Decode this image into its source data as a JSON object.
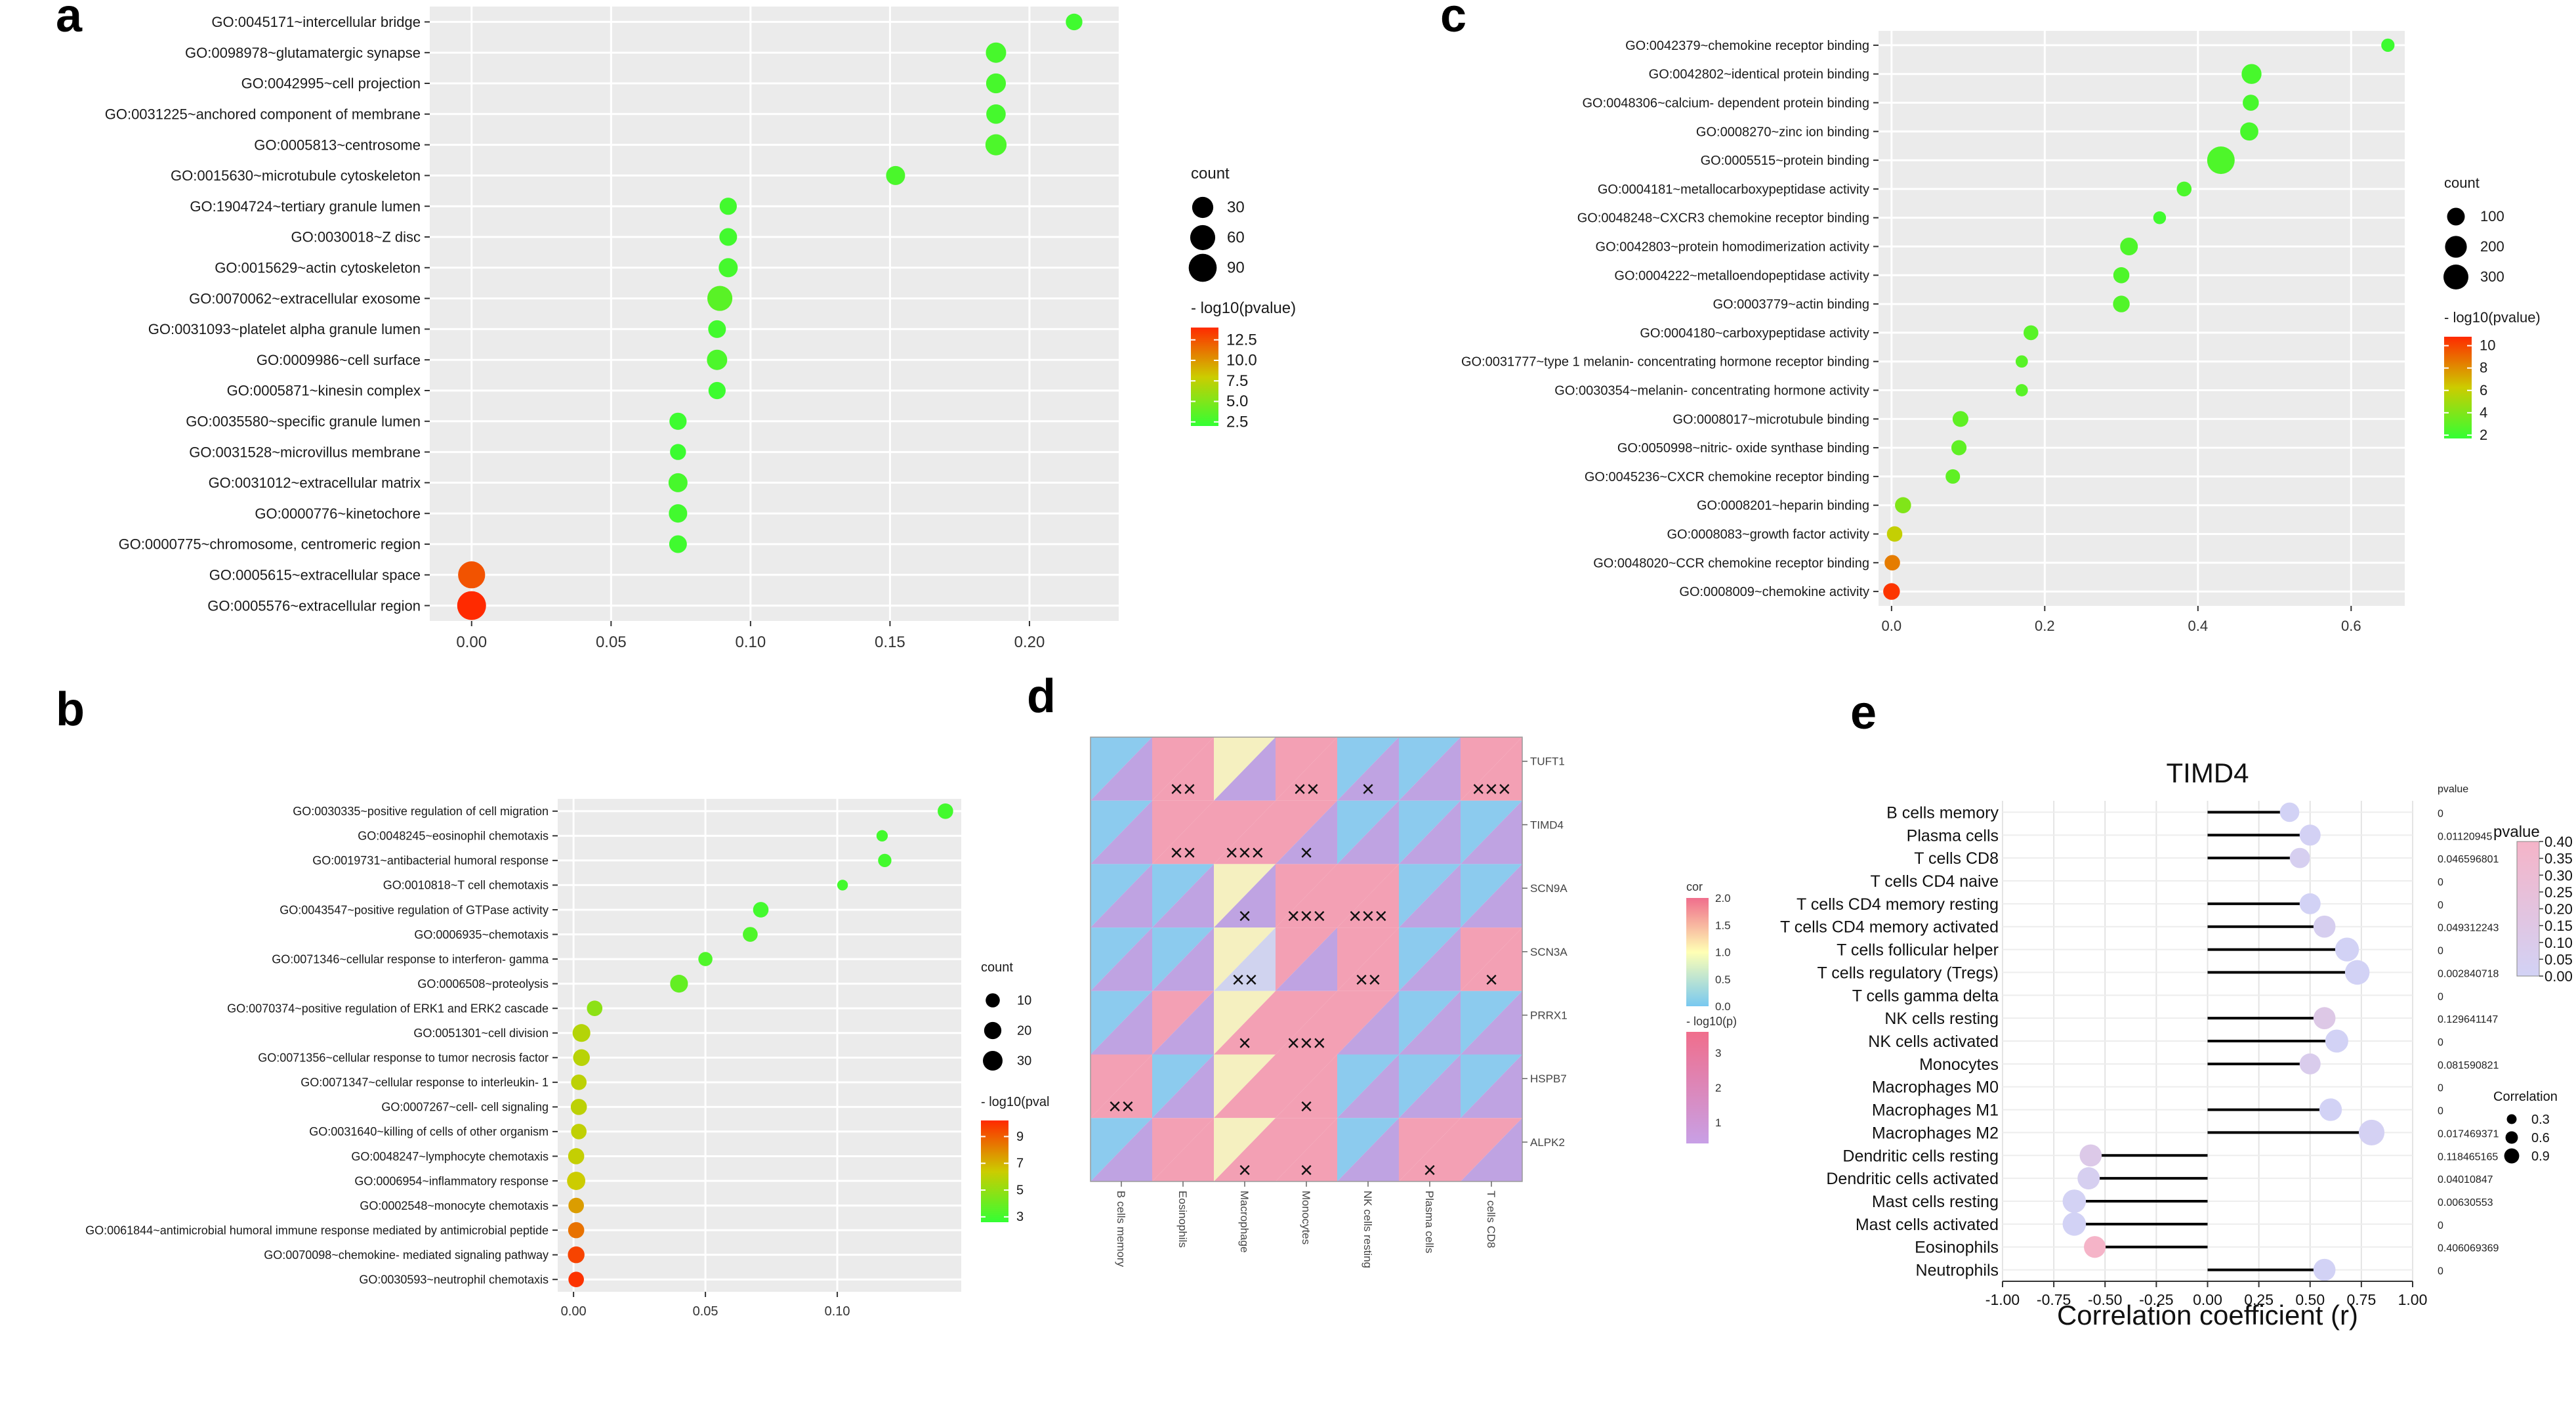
{
  "colors": {
    "green": "#33ff33",
    "yellow": "#cccc00",
    "red": "#ff2a00",
    "panel_bg": "#ebebeb",
    "grid": "#ffffff",
    "pink": "#f06e8c",
    "blue": "#78c8f0",
    "purple": "#c8a0e6",
    "cream": "#ffffb4",
    "lavender": "#c8c8f0"
  },
  "panels": {
    "a": "a",
    "b": "b",
    "c": "c",
    "d": "d",
    "e": "e"
  },
  "chart_data": [
    {
      "id": "a",
      "type": "scatter",
      "title": "",
      "xlabel": "",
      "ylabel": "",
      "xlim": [
        -0.015,
        0.232
      ],
      "xticks": [
        0.0,
        0.05,
        0.1,
        0.15,
        0.2
      ],
      "xtick_labels": [
        "0.00",
        "0.05",
        "0.10",
        "0.15",
        "0.20"
      ],
      "terms": [
        "GO:0045171~intercellular bridge",
        "GO:0098978~glutamatergic synapse",
        "GO:0042995~cell projection",
        "GO:0031225~anchored component of membrane",
        "GO:0005813~centrosome",
        "GO:0015630~microtubule cytoskeleton",
        "GO:1904724~tertiary granule lumen",
        "GO:0030018~Z disc",
        "GO:0015629~actin cytoskeleton",
        "GO:0070062~extracellular exosome",
        "GO:0031093~platelet alpha granule lumen",
        "GO:0009986~cell surface",
        "GO:0005871~kinesin complex",
        "GO:0035580~specific granule lumen",
        "GO:0031528~microvillus membrane",
        "GO:0031012~extracellular matrix",
        "GO:0000776~kinetochore",
        "GO:0000775~chromosome, centromeric region",
        "GO:0005615~extracellular space",
        "GO:0005576~extracellular region"
      ],
      "x": [
        0.216,
        0.188,
        0.188,
        0.188,
        0.188,
        0.152,
        0.092,
        0.092,
        0.092,
        0.089,
        0.088,
        0.088,
        0.088,
        0.074,
        0.074,
        0.074,
        0.074,
        0.074,
        0.0,
        0.0
      ],
      "count": [
        8,
        25,
        22,
        20,
        30,
        18,
        10,
        12,
        18,
        60,
        12,
        25,
        10,
        10,
        6,
        18,
        15,
        12,
        80,
        100
      ],
      "neglog10p": [
        2.5,
        2.8,
        2.8,
        2.7,
        3.0,
        2.9,
        2.6,
        2.6,
        2.7,
        3.5,
        2.6,
        3.0,
        2.4,
        2.4,
        2.3,
        2.8,
        2.6,
        2.5,
        12.5,
        14.0
      ],
      "size_legend": {
        "title": "count",
        "values": [
          30,
          60,
          90
        ],
        "labels": [
          "30",
          "60",
          "90"
        ]
      },
      "color_legend": {
        "title": "- log10(pvalue)",
        "min": 2.0,
        "max": 14.0,
        "ticks": [
          2.5,
          5.0,
          7.5,
          10.0,
          12.5
        ],
        "tick_labels": [
          "2.5",
          "5.0",
          "7.5",
          "10.0",
          "12.5"
        ]
      }
    },
    {
      "id": "b",
      "type": "scatter",
      "title": "",
      "xlabel": "",
      "ylabel": "",
      "xlim": [
        -0.006,
        0.147
      ],
      "xticks": [
        0.0,
        0.05,
        0.1
      ],
      "xtick_labels": [
        "0.00",
        "0.05",
        "0.10"
      ],
      "terms": [
        "GO:0030335~positive regulation of cell migration",
        "GO:0048245~eosinophil chemotaxis",
        "GO:0019731~antibacterial humoral response",
        "GO:0010818~T cell chemotaxis",
        "GO:0043547~positive regulation of GTPase activity",
        "GO:0006935~chemotaxis",
        "GO:0071346~cellular response to interferon- gamma",
        "GO:0006508~proteolysis",
        "GO:0070374~positive regulation of ERK1 and ERK2 cascade",
        "GO:0051301~cell division",
        "GO:0071356~cellular response to tumor necrosis factor",
        "GO:0071347~cellular response to interleukin- 1",
        "GO:0007267~cell- cell signaling",
        "GO:0031640~killing of cells of other organism",
        "GO:0048247~lymphocyte chemotaxis",
        "GO:0006954~inflammatory response",
        "GO:0002548~monocyte chemotaxis",
        "GO:0061844~antimicrobial humoral immune response mediated by antimicrobial peptide",
        "GO:0070098~chemokine- mediated signaling pathway",
        "GO:0030593~neutrophil chemotaxis"
      ],
      "x": [
        0.141,
        0.117,
        0.118,
        0.102,
        0.071,
        0.067,
        0.05,
        0.04,
        0.008,
        0.003,
        0.003,
        0.002,
        0.002,
        0.002,
        0.001,
        0.001,
        0.001,
        0.001,
        0.001,
        0.001
      ],
      "count": [
        14,
        4,
        8,
        3,
        14,
        12,
        10,
        22,
        14,
        22,
        18,
        14,
        16,
        14,
        16,
        24,
        14,
        16,
        18,
        14
      ],
      "neglog10p": [
        3.0,
        3.0,
        3.0,
        3.0,
        3.0,
        3.3,
        3.3,
        3.8,
        4.8,
        5.8,
        5.9,
        6.0,
        6.0,
        6.1,
        6.2,
        6.4,
        7.5,
        8.5,
        9.6,
        10.0
      ],
      "size_legend": {
        "title": "count",
        "values": [
          10,
          20,
          30
        ],
        "labels": [
          "10",
          "20",
          "30"
        ]
      },
      "color_legend": {
        "title": "- log10(pval",
        "min": 2.6,
        "max": 10.2,
        "ticks": [
          3,
          5,
          7,
          9
        ],
        "tick_labels": [
          "3",
          "5",
          "7",
          "9"
        ]
      }
    },
    {
      "id": "c",
      "type": "scatter",
      "title": "",
      "xlabel": "",
      "ylabel": "",
      "xlim": [
        -0.017,
        0.67
      ],
      "xticks": [
        0.0,
        0.2,
        0.4,
        0.6
      ],
      "xtick_labels": [
        "0.0",
        "0.2",
        "0.4",
        "0.6"
      ],
      "terms": [
        "GO:0042379~chemokine receptor binding",
        "GO:0042802~identical protein binding",
        "GO:0048306~calcium- dependent protein binding",
        "GO:0008270~zinc ion binding",
        "GO:0005515~protein binding",
        "GO:0004181~metallocarboxypeptidase activity",
        "GO:0048248~CXCR3 chemokine receptor binding",
        "GO:0042803~protein homodimerization activity",
        "GO:0004222~metalloendopeptidase activity",
        "GO:0003779~actin binding",
        "GO:0004180~carboxypeptidase activity",
        "GO:0031777~type 1 melanin- concentrating hormone receptor binding",
        "GO:0030354~melanin- concentrating hormone activity",
        "GO:0008017~microtubule binding",
        "GO:0050998~nitric- oxide synthase binding",
        "GO:0045236~CXCR chemokine receptor binding",
        "GO:0008201~heparin binding",
        "GO:0008083~growth factor activity",
        "GO:0048020~CCR chemokine receptor binding",
        "GO:0008009~chemokine activity"
      ],
      "x": [
        0.648,
        0.47,
        0.469,
        0.467,
        0.43,
        0.382,
        0.35,
        0.31,
        0.3,
        0.3,
        0.182,
        0.17,
        0.17,
        0.09,
        0.088,
        0.08,
        0.015,
        0.004,
        0.001,
        0.0
      ],
      "count": [
        30,
        150,
        70,
        110,
        400,
        50,
        25,
        100,
        70,
        80,
        50,
        20,
        20,
        65,
        55,
        45,
        70,
        60,
        60,
        80
      ],
      "neglog10p": [
        2.0,
        2.3,
        2.3,
        2.3,
        2.5,
        2.4,
        2.1,
        2.5,
        2.5,
        2.6,
        2.8,
        2.8,
        2.8,
        3.0,
        3.0,
        3.0,
        4.0,
        6.0,
        8.5,
        10.5
      ],
      "size_legend": {
        "title": "count",
        "values": [
          100,
          200,
          300
        ],
        "labels": [
          "100",
          "200",
          "300"
        ]
      },
      "color_legend": {
        "title": "- log10(pvalue)",
        "min": 1.7,
        "max": 10.8,
        "ticks": [
          2,
          4,
          6,
          8,
          10
        ],
        "tick_labels": [
          "2",
          "4",
          "6",
          "8",
          "10"
        ]
      }
    },
    {
      "id": "d",
      "type": "heatmap",
      "columns": [
        "B cells memory",
        "Eosinophils",
        "Macrophage",
        "Monocytes",
        "NK cells resting",
        "Plasma cells",
        "T cells CD8"
      ],
      "rows": [
        "TUFT1",
        "TIMD4",
        "SCN9A",
        "SCN3A",
        "PRRX1",
        "HSPB7",
        "ALPK2"
      ],
      "upper_tone": [
        [
          "blue",
          "pink",
          "cream",
          "pink",
          "blue",
          "blue",
          "pink"
        ],
        [
          "blue",
          "pink",
          "pink",
          "pink",
          "blue",
          "blue",
          "blue"
        ],
        [
          "blue",
          "blue",
          "cream",
          "pink",
          "pink",
          "blue",
          "blue"
        ],
        [
          "blue",
          "blue",
          "cream",
          "pink",
          "pink",
          "blue",
          "pink"
        ],
        [
          "blue",
          "pink",
          "cream",
          "pink",
          "pink",
          "blue",
          "blue"
        ],
        [
          "pink",
          "blue",
          "cream",
          "pink",
          "blue",
          "blue",
          "blue"
        ],
        [
          "blue",
          "pink",
          "cream",
          "pink",
          "blue",
          "pink",
          "pink"
        ]
      ],
      "lower_tone": [
        [
          "purple",
          "pink",
          "purple",
          "pink",
          "purple",
          "purple",
          "pink"
        ],
        [
          "purple",
          "pink",
          "pink",
          "purple",
          "purple",
          "purple",
          "purple"
        ],
        [
          "purple",
          "purple",
          "purple",
          "pink",
          "pink",
          "purple",
          "purple"
        ],
        [
          "purple",
          "purple",
          "lavender",
          "purple",
          "pink",
          "purple",
          "pink"
        ],
        [
          "purple",
          "purple",
          "pink",
          "pink",
          "purple",
          "purple",
          "purple"
        ],
        [
          "pink",
          "purple",
          "pink",
          "pink",
          "purple",
          "purple",
          "purple"
        ],
        [
          "purple",
          "pink",
          "pink",
          "pink",
          "purple",
          "pink",
          "purple"
        ]
      ],
      "marks": [
        [
          "",
          "XX",
          "",
          "XX",
          "X",
          "",
          "XXX"
        ],
        [
          "",
          "XX",
          "XXX",
          "X",
          "",
          "",
          ""
        ],
        [
          "",
          "",
          "X",
          "XXX",
          "XXX",
          "",
          ""
        ],
        [
          "",
          "",
          "XX",
          "",
          "XX",
          "",
          "X"
        ],
        [
          "",
          "",
          "X",
          "XXX",
          "",
          "",
          ""
        ],
        [
          "XX",
          "",
          "",
          "X",
          "",
          "",
          ""
        ],
        [
          "",
          "",
          "X",
          "X",
          "",
          "X",
          ""
        ]
      ],
      "mark_glyph": "×",
      "cor_legend": {
        "title": "cor",
        "min": 0.0,
        "max": 2.0,
        "ticks": [
          2.0,
          1.5,
          1.0,
          0.5,
          0.0
        ],
        "tick_labels": [
          "2.0",
          "1.5",
          "1.0",
          "0.5",
          "0.0"
        ]
      },
      "p_legend": {
        "title": "- log10(p)",
        "min": 0.4,
        "max": 3.6,
        "ticks": [
          3,
          2,
          1
        ],
        "tick_labels": [
          "3",
          "2",
          "1"
        ]
      }
    },
    {
      "id": "e",
      "type": "lollipop",
      "title": "TIMD4",
      "xlabel": "Correlation coefficient (r)",
      "xlim": [
        -1.0,
        1.0
      ],
      "xticks": [
        -1.0,
        -0.75,
        -0.5,
        -0.25,
        0.0,
        0.25,
        0.5,
        0.75,
        1.0
      ],
      "xtick_labels": [
        "-1.00",
        "-0.75",
        "-0.50",
        "-0.25",
        "0.00",
        "0.25",
        "0.50",
        "0.75",
        "1.00"
      ],
      "cells": [
        "B cells memory",
        "Plasma cells",
        "T cells CD8",
        "T cells CD4 naive",
        "T cells CD4 memory resting",
        "T cells CD4 memory activated",
        "T cells follicular helper",
        "T cells regulatory (Tregs)",
        "T cells gamma delta",
        "NK cells resting",
        "NK cells activated",
        "Monocytes",
        "Macrophages M0",
        "Macrophages M1",
        "Macrophages M2",
        "Dendritic cells resting",
        "Dendritic cells activated",
        "Mast cells resting",
        "Mast cells activated",
        "Eosinophils",
        "Neutrophils"
      ],
      "r": [
        0.4,
        0.5,
        0.45,
        0.0,
        0.5,
        0.57,
        0.68,
        0.73,
        0.0,
        0.57,
        0.63,
        0.5,
        0.0,
        0.6,
        0.8,
        -0.57,
        -0.58,
        -0.65,
        -0.65,
        -0.55,
        0.57
      ],
      "pvalue": [
        0.0,
        0.01120945,
        0.046596801,
        0.0,
        0.0,
        0.049312243,
        0.0,
        0.002840718,
        0.0,
        0.129641147,
        0.0,
        0.081590821,
        0.0,
        0.0,
        0.017469371,
        0.118465165,
        0.04010847,
        0.00630553,
        0.0,
        0.406069369,
        0.0
      ],
      "pvalue_labels": [
        "0",
        "0.01120945",
        "0.046596801",
        "0",
        "0",
        "0.049312243",
        "0",
        "0.002840718",
        "0",
        "0.129641147",
        "0",
        "0.081590821",
        "0",
        "0",
        "0.017469371",
        "0.118465165",
        "0.04010847",
        "0.00630553",
        "0",
        "0.406069369",
        "0"
      ],
      "pvalue_header": "pvalue",
      "color_legend": {
        "title": "pvalue",
        "min": 0.0,
        "max": 0.4,
        "ticks": [
          0.4,
          0.35,
          0.3,
          0.25,
          0.2,
          0.15,
          0.1,
          0.05,
          0.0
        ],
        "tick_labels": [
          "0.40",
          "0.35",
          "0.30",
          "0.25",
          "0.20",
          "0.15",
          "0.10",
          "0.05",
          "0.00"
        ]
      },
      "size_legend": {
        "title": "Correlation",
        "values": [
          0.3,
          0.6,
          0.9
        ],
        "labels": [
          "0.3",
          "0.6",
          "0.9"
        ]
      }
    }
  ]
}
